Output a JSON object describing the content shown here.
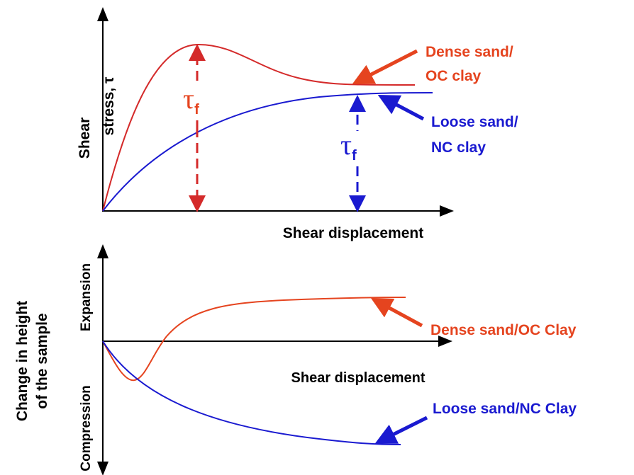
{
  "top_plot": {
    "y_label": [
      "Shear",
      "stress, τ"
    ],
    "x_label": "Shear displacement",
    "dense_label": [
      "Dense sand/",
      "OC clay"
    ],
    "loose_label": [
      "Loose sand/",
      "NC clay"
    ],
    "peak_strength": {
      "symbol": "τ",
      "subscript": "f"
    },
    "residual_strength": {
      "symbol": "τ",
      "subscript": "f"
    }
  },
  "bottom_plot": {
    "y_label": [
      "Change in height",
      "of the sample"
    ],
    "upper_region": "Expansion",
    "lower_region": "Compression",
    "x_label": "Shear displacement",
    "dense_label": "Dense sand/OC Clay",
    "loose_label": "Loose sand/NC Clay"
  }
}
